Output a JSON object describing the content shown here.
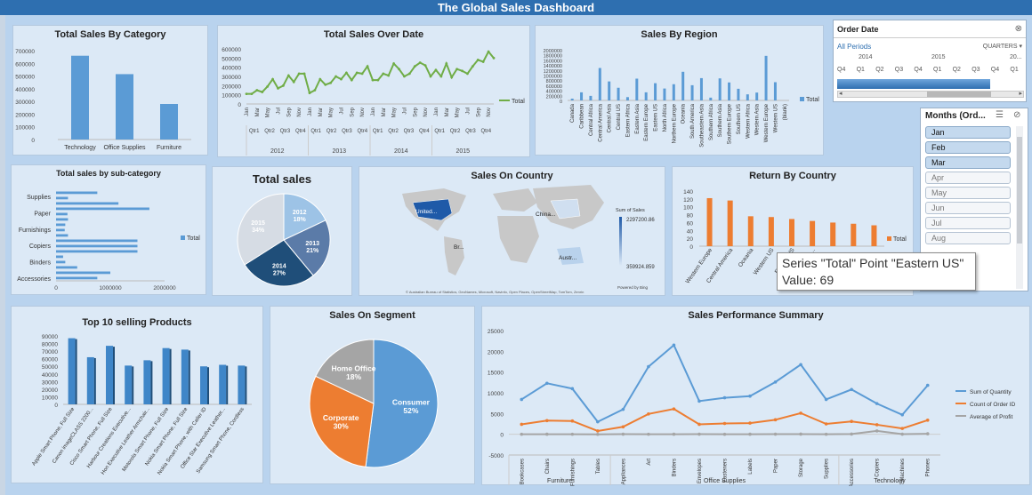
{
  "dashboard": {
    "title": "The Global Sales Dashboard"
  },
  "colors": {
    "blue": "#5b9bd5",
    "green": "#70ad47",
    "orange": "#ed7d31",
    "gray": "#a5a5a5",
    "title_bar": "#2e6fb0"
  },
  "order_date_slicer": {
    "title": "Order Date",
    "all_periods": "All Periods",
    "level": "QUARTERS",
    "years": [
      "2014",
      "2015",
      "20..."
    ],
    "quarters": [
      "Q4",
      "Q1",
      "Q2",
      "Q3",
      "Q4",
      "Q1",
      "Q2",
      "Q3",
      "Q4",
      "Q1"
    ]
  },
  "months_slicer": {
    "title": "Months (Ord...",
    "items": [
      "Jan",
      "Feb",
      "Mar",
      "Apr",
      "May",
      "Jun",
      "Jul",
      "Aug"
    ],
    "selected": [
      "Jan",
      "Feb",
      "Mar"
    ]
  },
  "tooltip": {
    "line1": "Series \"Total\" Point \"Eastern US\"",
    "line2": "Value: 69"
  },
  "chart_data": [
    {
      "id": "sales_by_category",
      "type": "bar",
      "title": "Total Sales By Category",
      "categories": [
        "Technology",
        "Office Supplies",
        "Furniture"
      ],
      "values": [
        660000,
        515000,
        280000
      ],
      "ylim": [
        0,
        700000
      ],
      "yticks": [
        "700000",
        "600000",
        "500000",
        "400000",
        "300000",
        "200000",
        "100000",
        "0"
      ]
    },
    {
      "id": "sales_over_date",
      "type": "line",
      "title": "Total Sales Over Date",
      "legend": [
        "Total"
      ],
      "legend_position": "right",
      "ylim": [
        0,
        600000
      ],
      "yticks": [
        "600000",
        "500000",
        "400000",
        "300000",
        "200000",
        "100000",
        "0"
      ],
      "month_labels": [
        "Jan",
        "Mar",
        "May",
        "Jul",
        "Sep",
        "Nov",
        "Jan",
        "Mar",
        "May",
        "Jul",
        "Sep",
        "Nov",
        "Jan",
        "Mar",
        "May",
        "Jul",
        "Sep",
        "Nov",
        "Jan",
        "Mar",
        "May",
        "Jul",
        "Sep",
        "Nov"
      ],
      "quarter_labels": [
        "Qtr1",
        "Qtr2",
        "Qtr3",
        "Qtr4",
        "Qtr1",
        "Qtr2",
        "Qtr3",
        "Qtr4",
        "Qtr1",
        "Qtr2",
        "Qtr3",
        "Qtr4",
        "Qtr1",
        "Qtr2",
        "Qtr3",
        "Qtr4"
      ],
      "year_labels": [
        "2012",
        "2013",
        "2014",
        "2015"
      ],
      "values": [
        110000,
        110000,
        150000,
        130000,
        190000,
        270000,
        170000,
        200000,
        310000,
        240000,
        330000,
        330000,
        120000,
        150000,
        270000,
        210000,
        230000,
        300000,
        270000,
        340000,
        260000,
        340000,
        330000,
        410000,
        260000,
        260000,
        330000,
        310000,
        440000,
        380000,
        300000,
        330000,
        410000,
        450000,
        420000,
        300000,
        370000,
        300000,
        440000,
        290000,
        380000,
        360000,
        330000,
        410000,
        480000,
        460000,
        570000,
        500000
      ]
    },
    {
      "id": "sales_by_region",
      "type": "bar",
      "title": "Sales By Region",
      "legend": [
        "Total"
      ],
      "legend_position": "right",
      "ylim": [
        0,
        2000000
      ],
      "yticks": [
        "2000000",
        "1800000",
        "1600000",
        "1400000",
        "1200000",
        "1000000",
        "800000",
        "600000",
        "400000",
        "200000",
        "0"
      ],
      "categories": [
        "Canada",
        "Caribbean",
        "Central Africa",
        "Central America",
        "Central Asia",
        "Central US",
        "Eastern Africa",
        "Eastern Asia",
        "Eastern Europe",
        "Eastern US",
        "North Africa",
        "Northern Europe",
        "Oceania",
        "South America",
        "Southeastern Asia",
        "Southern Africa",
        "Southern Asia",
        "Southern Europe",
        "Southern US",
        "Western Africa",
        "Western Asia",
        "Western Europe",
        "Western US",
        "(blank)"
      ],
      "values": [
        70000,
        320000,
        180000,
        1280000,
        750000,
        500000,
        130000,
        860000,
        320000,
        680000,
        470000,
        640000,
        1130000,
        600000,
        880000,
        110000,
        870000,
        710000,
        460000,
        240000,
        310000,
        1760000,
        720000,
        0
      ]
    },
    {
      "id": "sales_by_subcategory",
      "type": "bar",
      "title": "Total sales by sub-category",
      "legend": [
        "Total"
      ],
      "legend_position": "right",
      "xlim": [
        0,
        2000000
      ],
      "xticks": [
        "0",
        "1000000",
        "2000000"
      ],
      "group_labels": [
        "Supplies",
        "Paper",
        "Furnishings",
        "Copiers",
        "Binders",
        "Accessories"
      ],
      "values": [
        760000,
        220000,
        1150000,
        1720000,
        210000,
        220000,
        170000,
        160000,
        220000,
        1500000,
        1500000,
        1500000,
        130000,
        170000,
        390000,
        1000000,
        760000
      ]
    },
    {
      "id": "total_sales_pie",
      "type": "pie",
      "title": "Total sales",
      "categories": [
        "2012",
        "2013",
        "2014",
        "2015"
      ],
      "labels": [
        "18%",
        "21%",
        "27%",
        "34%"
      ],
      "values": [
        18,
        21,
        27,
        34
      ]
    },
    {
      "id": "sales_on_country",
      "type": "map",
      "title": "Sales On Country",
      "legend_title": "Sum of Sales",
      "legend_max": "2297200.86",
      "legend_min": "359924.859",
      "labels": [
        "United...",
        "China...",
        "Br...",
        "Austr..."
      ],
      "credit": "© Australian Bureau of Statistics, GeoNames, Microsoft, Navinfo, Open Places, OpenStreetMap, TomTom, Zenrin",
      "powered_by": "Powered by Bing"
    },
    {
      "id": "return_by_country",
      "type": "bar",
      "title": "Return By Country",
      "legend": [
        "Total"
      ],
      "legend_position": "right",
      "ylim": [
        0,
        140
      ],
      "yticks": [
        "140",
        "120",
        "100",
        "80",
        "60",
        "40",
        "20",
        "0"
      ],
      "categories": [
        "Western Europe",
        "Central America",
        "Oceania",
        "Western US",
        "Eastern US",
        "Southe...",
        "",
        "",
        ""
      ],
      "values": [
        122,
        116,
        76,
        74,
        69,
        64,
        60,
        57,
        53
      ]
    },
    {
      "id": "top10_products",
      "type": "bar",
      "title": "Top 10 selling Products",
      "ylim": [
        0,
        90000
      ],
      "yticks": [
        "90000",
        "80000",
        "70000",
        "60000",
        "50000",
        "40000",
        "30000",
        "20000",
        "10000",
        "0"
      ],
      "categories": [
        "Apple Smart Phone, Full Size",
        "Canon imageCLASS 2200...",
        "Cisco Smart Phone, Full Size",
        "Harbour Creations Executive...",
        "Hon Executive Leather Armchair...",
        "Motorola Smart Phone, Full Size",
        "Nokia Smart Phone, Full Size",
        "Nokia Smart Phone, with Caller ID",
        "Office Star Executive Leather...",
        "Samsung Smart Phone, Cordless"
      ],
      "values": [
        87000,
        62000,
        77000,
        51000,
        58000,
        74000,
        72000,
        50000,
        52000,
        51000
      ]
    },
    {
      "id": "sales_on_segment",
      "type": "pie",
      "title": "Sales On Segment",
      "categories": [
        "Consumer",
        "Corporate",
        "Home Office"
      ],
      "labels": [
        "52%",
        "30%",
        "18%"
      ],
      "values": [
        52,
        30,
        18
      ]
    },
    {
      "id": "sales_performance",
      "type": "line",
      "title": "Sales Performance  Summary",
      "ylim": [
        -5000,
        25000
      ],
      "yticks": [
        "25000",
        "20000",
        "15000",
        "10000",
        "5000",
        "0",
        "-5000"
      ],
      "categories": [
        "Bookcases",
        "Chairs",
        "Furnishings",
        "Tables",
        "Appliances",
        "Art",
        "Binders",
        "Envelopes",
        "Fasteners",
        "Labels",
        "Paper",
        "Storage",
        "Supplies",
        "Accessories",
        "Copiers",
        "Machines",
        "Phones"
      ],
      "groups": [
        "Furniture",
        "Office Supplies",
        "Technology"
      ],
      "series": [
        {
          "name": "Sum of Quantity",
          "values": [
            8400,
            12300,
            11000,
            3000,
            6000,
            16300,
            21500,
            8000,
            8800,
            9200,
            12600,
            16800,
            8400,
            10800,
            7400,
            4700,
            11800
          ]
        },
        {
          "name": "Count of Order ID",
          "values": [
            2400,
            3300,
            3200,
            800,
            1800,
            4900,
            6100,
            2400,
            2600,
            2700,
            3500,
            5100,
            2500,
            3100,
            2300,
            1400,
            3400
          ]
        },
        {
          "name": "Average of Profit",
          "values": [
            10,
            15,
            8,
            -20,
            30,
            8,
            20,
            30,
            4,
            15,
            25,
            45,
            10,
            55,
            800,
            30,
            120
          ]
        }
      ]
    }
  ]
}
